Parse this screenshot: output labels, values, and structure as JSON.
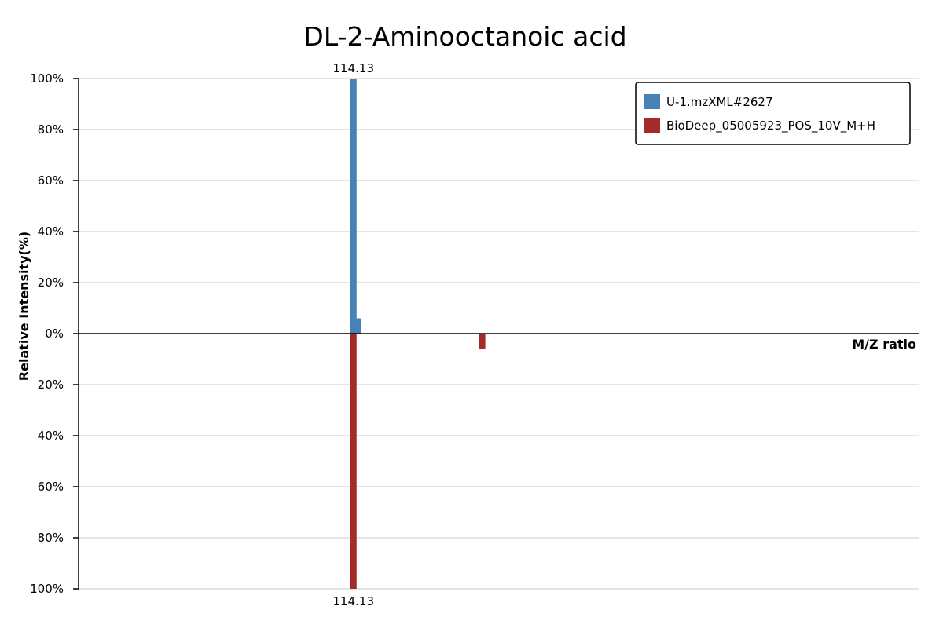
{
  "chart_data": {
    "type": "bar",
    "title": "DL-2-Aminooctanoic acid",
    "xlabel": "M/Z ratio",
    "ylabel": "Relative Intensity(%)",
    "xlim": [
      70,
      205
    ],
    "ylim": [
      -100,
      100
    ],
    "y_ticks": [
      "100%",
      "80%",
      "60%",
      "40%",
      "20%",
      "0%",
      "20%",
      "40%",
      "60%",
      "80%",
      "100%"
    ],
    "grid": true,
    "legend_position": "top-right",
    "series": [
      {
        "name": "U-1.mzXML#2627",
        "color": "#4682b4",
        "direction": "up",
        "peaks": [
          {
            "mz": 114.13,
            "intensity": 100,
            "label": "114.13"
          },
          {
            "mz": 114.83,
            "intensity": 6
          }
        ]
      },
      {
        "name": "BioDeep_05005923_POS_10V_M+H",
        "color": "#a52a2a",
        "direction": "down",
        "peaks": [
          {
            "mz": 114.13,
            "intensity": 100,
            "label": "114.13"
          },
          {
            "mz": 134.8,
            "intensity": 6
          }
        ]
      }
    ]
  }
}
